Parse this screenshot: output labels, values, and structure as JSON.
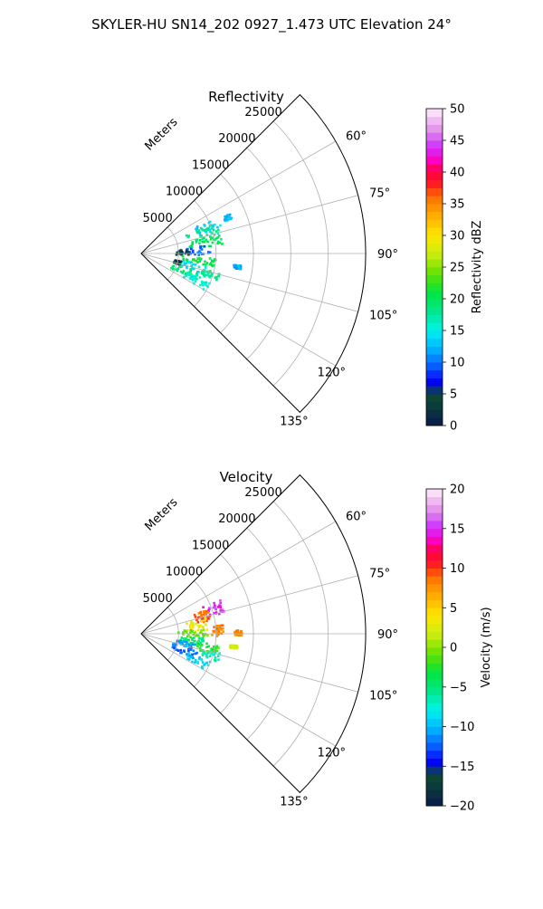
{
  "suptitle": "SKYLER-HU  SN14_202  0927_1.473 UTC Elevation 24°",
  "chart_data": [
    {
      "type": "polar-sector",
      "title": "Reflectivity",
      "radial_label": "Meters",
      "r_max": 30000,
      "r_ticks": [
        5000,
        10000,
        15000,
        20000,
        25000
      ],
      "r_tick_labels": [
        "5000",
        "10000",
        "15000",
        "20000",
        "25000"
      ],
      "theta_range_deg": [
        45,
        135
      ],
      "theta_ticks": [
        60,
        75,
        90,
        105,
        120,
        135
      ],
      "theta_tick_labels": [
        "60°",
        "75°",
        "90°",
        "105°",
        "120°",
        "135°"
      ],
      "grid": true,
      "colorbar": {
        "label": "Reflectivity dBZ",
        "min": 0,
        "max": 50,
        "ticks": [
          0,
          5,
          10,
          15,
          20,
          25,
          30,
          35,
          40,
          45,
          50
        ],
        "tick_labels": [
          "0",
          "5",
          "10",
          "15",
          "20",
          "25",
          "30",
          "35",
          "40",
          "45",
          "50"
        ]
      },
      "echo_regions": [
        {
          "theta": [
            64,
            72
          ],
          "r": [
            8000,
            11500
          ],
          "value": 14
        },
        {
          "theta": [
            68,
            80
          ],
          "r": [
            6500,
            11000
          ],
          "value": 18
        },
        {
          "theta": [
            76,
            84
          ],
          "r": [
            6500,
            11000
          ],
          "value": 20
        },
        {
          "theta": [
            83,
            92
          ],
          "r": [
            5000,
            9500
          ],
          "value": 10
        },
        {
          "theta": [
            86,
            92
          ],
          "r": [
            4500,
            6500
          ],
          "value": 3
        },
        {
          "theta": [
            94,
            100
          ],
          "r": [
            5500,
            10000
          ],
          "value": 21
        },
        {
          "theta": [
            100,
            108
          ],
          "r": [
            5000,
            9000
          ],
          "value": 14
        },
        {
          "theta": [
            101,
            106
          ],
          "r": [
            4500,
            5500
          ],
          "value": 3
        },
        {
          "theta": [
            108,
            116
          ],
          "r": [
            4500,
            8000
          ],
          "value": 19
        },
        {
          "theta": [
            112,
            120
          ],
          "r": [
            6500,
            10000
          ],
          "value": 16
        },
        {
          "theta": [
            104,
            110
          ],
          "r": [
            8500,
            11000
          ],
          "value": 18
        },
        {
          "theta": [
            66,
            69
          ],
          "r": [
            12000,
            13000
          ],
          "value": 13
        },
        {
          "theta": [
            97,
            99
          ],
          "r": [
            12500,
            13500
          ],
          "value": 12
        }
      ]
    },
    {
      "type": "polar-sector",
      "title": "Velocity",
      "radial_label": "Meters",
      "r_max": 30000,
      "r_ticks": [
        5000,
        10000,
        15000,
        20000,
        25000
      ],
      "r_tick_labels": [
        "5000",
        "10000",
        "15000",
        "20000",
        "25000"
      ],
      "theta_range_deg": [
        45,
        135
      ],
      "theta_ticks": [
        60,
        75,
        90,
        105,
        120,
        135
      ],
      "theta_tick_labels": [
        "60°",
        "75°",
        "90°",
        "105°",
        "120°",
        "135°"
      ],
      "grid": true,
      "colorbar": {
        "label": "Velocity (m/s)",
        "min": -20,
        "max": 20,
        "ticks": [
          -20,
          -15,
          -10,
          -5,
          0,
          5,
          10,
          15,
          20
        ],
        "tick_labels": [
          "−20",
          "−15",
          "−10",
          "−5",
          "0",
          "5",
          "10",
          "15",
          "20"
        ]
      },
      "echo_regions": [
        {
          "theta": [
            66,
            76
          ],
          "r": [
            9000,
            11500
          ],
          "value": 15
        },
        {
          "theta": [
            70,
            80
          ],
          "r": [
            7500,
            9500
          ],
          "value": 9
        },
        {
          "theta": [
            76,
            88
          ],
          "r": [
            6000,
            9000
          ],
          "value": 3
        },
        {
          "theta": [
            84,
            92
          ],
          "r": [
            9500,
            11000
          ],
          "value": 8
        },
        {
          "theta": [
            84,
            94
          ],
          "r": [
            5000,
            9000
          ],
          "value": -1
        },
        {
          "theta": [
            94,
            102
          ],
          "r": [
            5000,
            8500
          ],
          "value": -5
        },
        {
          "theta": [
            100,
            108
          ],
          "r": [
            4500,
            7500
          ],
          "value": -11
        },
        {
          "theta": [
            98,
            106
          ],
          "r": [
            7500,
            10500
          ],
          "value": -2
        },
        {
          "theta": [
            108,
            116
          ],
          "r": [
            4500,
            8000
          ],
          "value": -12
        },
        {
          "theta": [
            112,
            120
          ],
          "r": [
            6500,
            10000
          ],
          "value": -9
        },
        {
          "theta": [
            104,
            110
          ],
          "r": [
            8500,
            11000
          ],
          "value": -7
        },
        {
          "theta": [
            88,
            91
          ],
          "r": [
            12500,
            13500
          ],
          "value": 8
        },
        {
          "theta": [
            97,
            99
          ],
          "r": [
            12000,
            13000
          ],
          "value": 2
        }
      ]
    }
  ]
}
